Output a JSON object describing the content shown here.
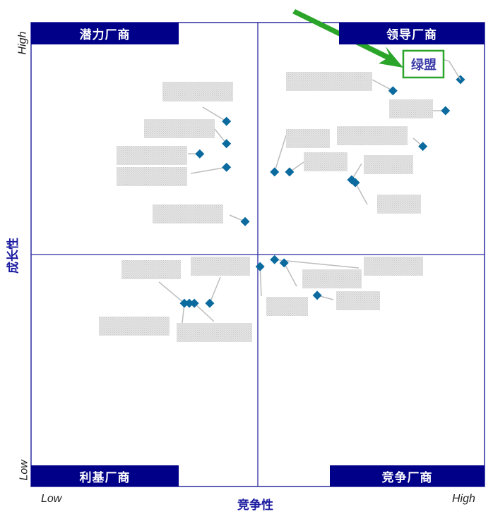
{
  "chart_data": {
    "type": "scatter",
    "subtype": "quadrant",
    "xlabel": "竞争性",
    "ylabel": "成长性",
    "x_ticks": {
      "low": "Low",
      "high": "High"
    },
    "y_ticks": {
      "low": "Low",
      "high": "High"
    },
    "xlim": [
      0,
      100
    ],
    "ylim": [
      0,
      100
    ],
    "grid": false,
    "quadrants": {
      "top_left": "潜力厂商",
      "top_right": "领导厂商",
      "bottom_left": "利基厂商",
      "bottom_right": "竞争厂商"
    },
    "highlight": {
      "label": "绿盟",
      "x": 94.7,
      "y": 87.7,
      "color": "#2aa52a"
    },
    "points": [
      {
        "x": 94.7,
        "y": 87.7,
        "label": "绿盟"
      },
      {
        "x": 79.8,
        "y": 85.3,
        "label": ""
      },
      {
        "x": 91.4,
        "y": 81.0,
        "label": ""
      },
      {
        "x": 86.4,
        "y": 73.3,
        "label": ""
      },
      {
        "x": 53.7,
        "y": 67.8,
        "label": ""
      },
      {
        "x": 57.0,
        "y": 67.8,
        "label": ""
      },
      {
        "x": 70.7,
        "y": 66.1,
        "label": ""
      },
      {
        "x": 71.5,
        "y": 65.5,
        "label": ""
      },
      {
        "x": 43.1,
        "y": 78.7,
        "label": ""
      },
      {
        "x": 43.1,
        "y": 73.9,
        "label": ""
      },
      {
        "x": 37.2,
        "y": 71.7,
        "label": ""
      },
      {
        "x": 43.1,
        "y": 68.8,
        "label": ""
      },
      {
        "x": 47.2,
        "y": 57.1,
        "label": ""
      },
      {
        "x": 50.5,
        "y": 47.4,
        "label": ""
      },
      {
        "x": 53.7,
        "y": 48.9,
        "label": ""
      },
      {
        "x": 55.8,
        "y": 48.2,
        "label": ""
      },
      {
        "x": 63.1,
        "y": 41.2,
        "label": ""
      },
      {
        "x": 33.8,
        "y": 39.5,
        "label": ""
      },
      {
        "x": 34.9,
        "y": 39.5,
        "label": ""
      },
      {
        "x": 36.0,
        "y": 39.5,
        "label": ""
      },
      {
        "x": 39.4,
        "y": 39.5,
        "label": ""
      }
    ],
    "colors": {
      "marker": "#0b6a9e",
      "frame": "#2b2ba0",
      "band": "#000088",
      "arrow": "#2aa52a",
      "redacted_label": "#d9d9d9"
    }
  }
}
